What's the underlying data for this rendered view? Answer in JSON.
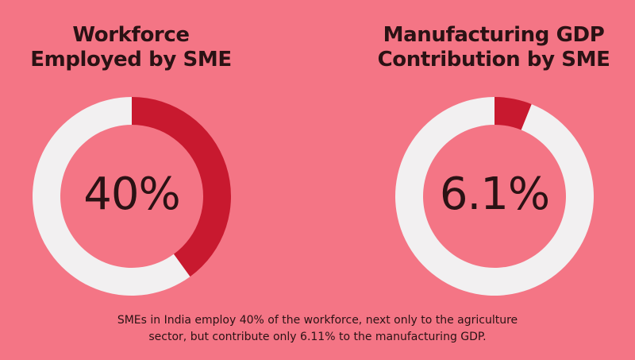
{
  "colors": {
    "background": "#f47585",
    "filled": "#c8192f",
    "remaining": "#f2f0f1",
    "text": "#2a1214"
  },
  "chart_data": [
    {
      "type": "pie",
      "variant": "donut",
      "title_lines": [
        "Workforce",
        "Employed by SME"
      ],
      "center_label": "40%",
      "value": 40,
      "unit": "%",
      "slices": [
        {
          "value": 40,
          "color": "#c8192f"
        },
        {
          "value": 60,
          "color": "#f2f0f1"
        }
      ]
    },
    {
      "type": "pie",
      "variant": "donut",
      "title_lines": [
        "Manufacturing GDP",
        "Contribution by SME"
      ],
      "center_label": "6.1%",
      "value": 6.1,
      "unit": "%",
      "slices": [
        {
          "value": 6.1,
          "color": "#c8192f"
        },
        {
          "value": 93.9,
          "color": "#f2f0f1"
        }
      ]
    }
  ],
  "caption": {
    "line1": "SMEs in India employ 40% of the workforce, next only to the agriculture",
    "line2": "sector, but contribute only 6.11% to the manufacturing GDP."
  }
}
